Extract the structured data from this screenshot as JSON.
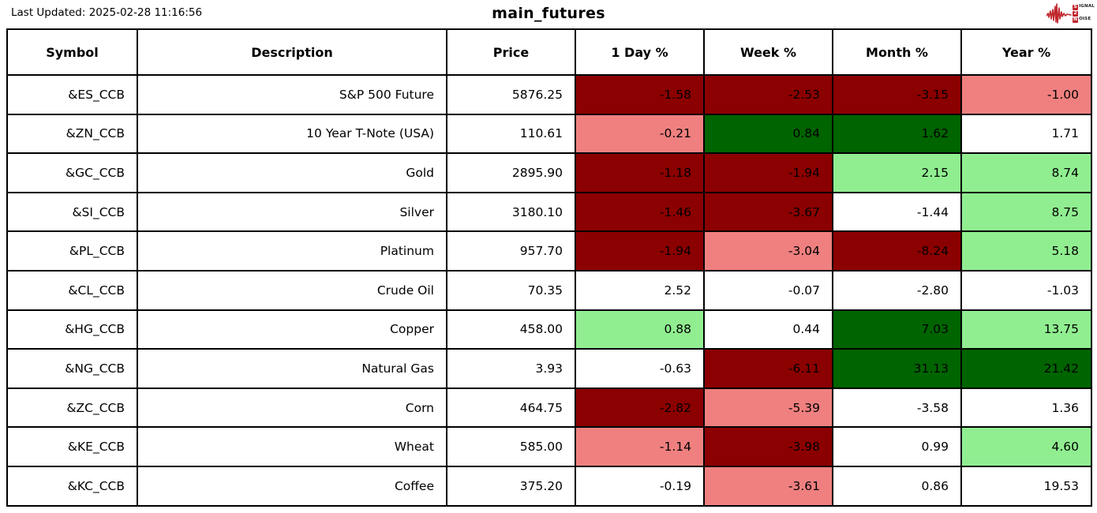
{
  "chart_data": {
    "type": "table",
    "title": "main_futures",
    "last_updated": "Last Updated: 2025-02-28 11:16:56",
    "columns": [
      "Symbol",
      "Description",
      "Price",
      "1 Day %",
      "Week %",
      "Month %",
      "Year %"
    ],
    "rows": [
      {
        "symbol": "&ES_CCB",
        "description": "S&P 500 Future",
        "price": "5876.25",
        "changes": [
          {
            "value": "-1.58",
            "tone": "neg_strong"
          },
          {
            "value": "-2.53",
            "tone": "neg_strong"
          },
          {
            "value": "-3.15",
            "tone": "neg_strong"
          },
          {
            "value": "-1.00",
            "tone": "neg_mild"
          }
        ]
      },
      {
        "symbol": "&ZN_CCB",
        "description": "10 Year T-Note (USA)",
        "price": "110.61",
        "changes": [
          {
            "value": "-0.21",
            "tone": "neg_mild"
          },
          {
            "value": "0.84",
            "tone": "pos_strong"
          },
          {
            "value": "1.62",
            "tone": "pos_strong"
          },
          {
            "value": "1.71",
            "tone": "neutral"
          }
        ]
      },
      {
        "symbol": "&GC_CCB",
        "description": "Gold",
        "price": "2895.90",
        "changes": [
          {
            "value": "-1.18",
            "tone": "neg_strong"
          },
          {
            "value": "-1.94",
            "tone": "neg_strong"
          },
          {
            "value": "2.15",
            "tone": "pos_mild"
          },
          {
            "value": "8.74",
            "tone": "pos_mild"
          }
        ]
      },
      {
        "symbol": "&SI_CCB",
        "description": "Silver",
        "price": "3180.10",
        "changes": [
          {
            "value": "-1.46",
            "tone": "neg_strong"
          },
          {
            "value": "-3.67",
            "tone": "neg_strong"
          },
          {
            "value": "-1.44",
            "tone": "neutral"
          },
          {
            "value": "8.75",
            "tone": "pos_mild"
          }
        ]
      },
      {
        "symbol": "&PL_CCB",
        "description": "Platinum",
        "price": "957.70",
        "changes": [
          {
            "value": "-1.94",
            "tone": "neg_strong"
          },
          {
            "value": "-3.04",
            "tone": "neg_mild"
          },
          {
            "value": "-8.24",
            "tone": "neg_strong"
          },
          {
            "value": "5.18",
            "tone": "pos_mild"
          }
        ]
      },
      {
        "symbol": "&CL_CCB",
        "description": "Crude Oil",
        "price": "70.35",
        "changes": [
          {
            "value": "2.52",
            "tone": "neutral"
          },
          {
            "value": "-0.07",
            "tone": "neutral"
          },
          {
            "value": "-2.80",
            "tone": "neutral"
          },
          {
            "value": "-1.03",
            "tone": "neutral"
          }
        ]
      },
      {
        "symbol": "&HG_CCB",
        "description": "Copper",
        "price": "458.00",
        "changes": [
          {
            "value": "0.88",
            "tone": "pos_mild"
          },
          {
            "value": "0.44",
            "tone": "neutral"
          },
          {
            "value": "7.03",
            "tone": "pos_strong"
          },
          {
            "value": "13.75",
            "tone": "pos_mild"
          }
        ]
      },
      {
        "symbol": "&NG_CCB",
        "description": "Natural Gas",
        "price": "3.93",
        "changes": [
          {
            "value": "-0.63",
            "tone": "neutral"
          },
          {
            "value": "-6.11",
            "tone": "neg_strong"
          },
          {
            "value": "31.13",
            "tone": "pos_strong"
          },
          {
            "value": "21.42",
            "tone": "pos_strong"
          }
        ]
      },
      {
        "symbol": "&ZC_CCB",
        "description": "Corn",
        "price": "464.75",
        "changes": [
          {
            "value": "-2.82",
            "tone": "neg_strong"
          },
          {
            "value": "-5.39",
            "tone": "neg_mild"
          },
          {
            "value": "-3.58",
            "tone": "neutral"
          },
          {
            "value": "1.36",
            "tone": "neutral"
          }
        ]
      },
      {
        "symbol": "&KE_CCB",
        "description": "Wheat",
        "price": "585.00",
        "changes": [
          {
            "value": "-1.14",
            "tone": "neg_mild"
          },
          {
            "value": "-3.98",
            "tone": "neg_strong"
          },
          {
            "value": "0.99",
            "tone": "neutral"
          },
          {
            "value": "4.60",
            "tone": "pos_mild"
          }
        ]
      },
      {
        "symbol": "&KC_CCB",
        "description": "Coffee",
        "price": "375.20",
        "changes": [
          {
            "value": "-0.19",
            "tone": "neutral"
          },
          {
            "value": "-3.61",
            "tone": "neg_mild"
          },
          {
            "value": "0.86",
            "tone": "neutral"
          },
          {
            "value": "19.53",
            "tone": "neutral"
          }
        ]
      }
    ]
  },
  "colors": {
    "neg_strong": "#8B0000",
    "neg_mild": "#F08080",
    "pos_strong": "#006400",
    "pos_mild": "#90EE90",
    "neutral": "#FFFFFF",
    "accent": "#C1272D"
  },
  "logo": {
    "line1_initial": "S",
    "line1_rest": "IGNAL",
    "line2_initial": "2",
    "line2_rest": "",
    "line3_initial": "N",
    "line3_rest": "OISE"
  }
}
